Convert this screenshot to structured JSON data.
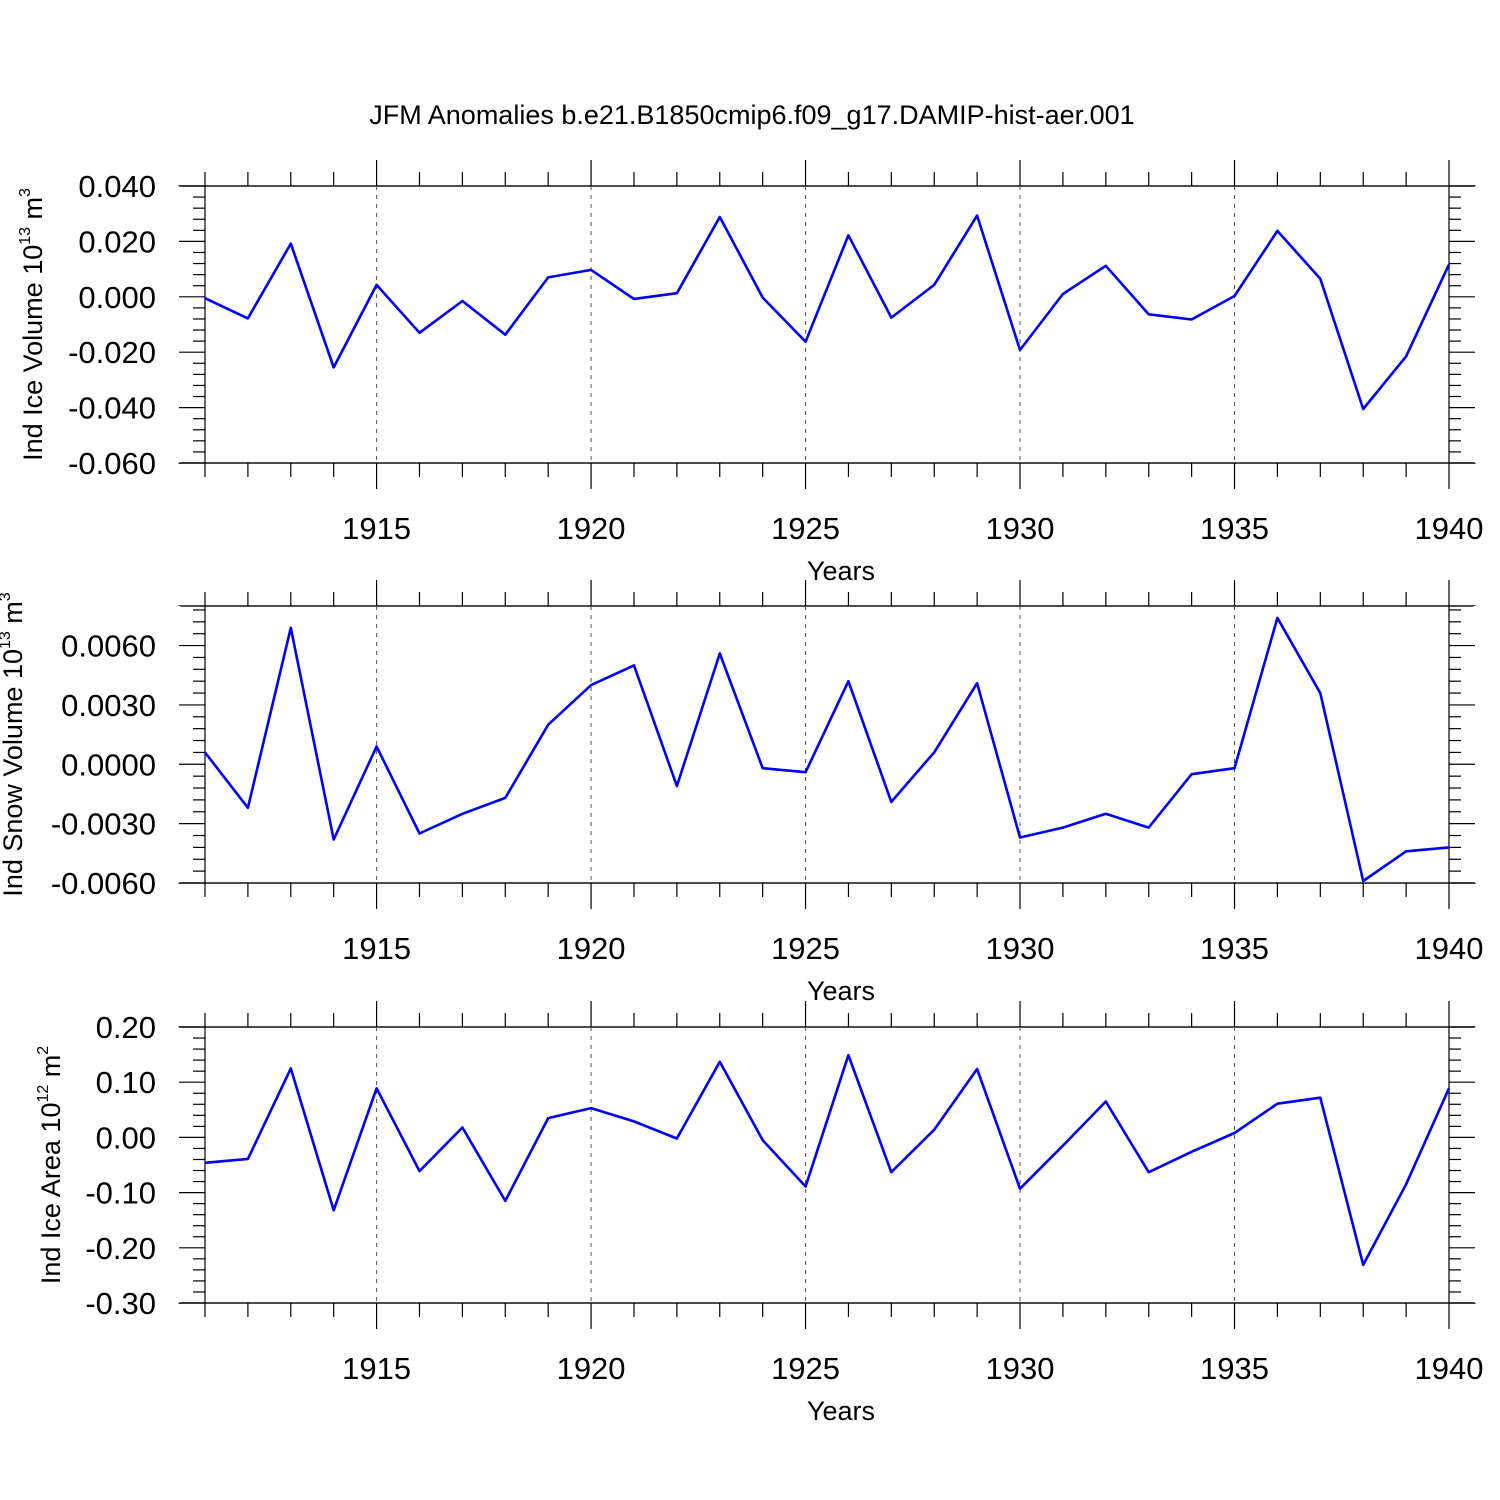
{
  "chart_data": [
    {
      "type": "line",
      "title": "JFM Anomalies b.e21.B1850cmip6.f09_g17.DAMIP-hist-aer.001",
      "ylabel": "Ind Ice Volume 10",
      "ylabel_exp": "13",
      "ylabel_unit": " m",
      "ylabel_unit_exp": "3",
      "xlabel": "Years",
      "xlim": [
        1911,
        1940
      ],
      "ylim": [
        -0.06,
        0.04
      ],
      "xticks": [
        1915,
        1920,
        1925,
        1930,
        1935,
        1940
      ],
      "xtick_labels": [
        "1915",
        "1920",
        "1925",
        "1930",
        "1935",
        "1940"
      ],
      "yticks": [
        0.04,
        0.02,
        0.0,
        -0.02,
        -0.04,
        -0.06
      ],
      "ytick_labels": [
        "0.040",
        "0.020",
        "0.000",
        "-0.020",
        "-0.040",
        "-0.060"
      ],
      "x": [
        1911,
        1912,
        1913,
        1914,
        1915,
        1916,
        1917,
        1918,
        1919,
        1920,
        1921,
        1922,
        1923,
        1924,
        1925,
        1926,
        1927,
        1928,
        1929,
        1930,
        1931,
        1932,
        1933,
        1934,
        1935,
        1936,
        1937,
        1938,
        1939,
        1940
      ],
      "series": [
        {
          "name": "Ind Ice Volume",
          "color": "#0000ff",
          "values": [
            -0.0005,
            -0.0078,
            0.0192,
            -0.0255,
            0.0043,
            -0.013,
            -0.0015,
            -0.0137,
            0.007,
            0.0097,
            -0.0008,
            0.0013,
            0.0288,
            -0.0003,
            -0.0162,
            0.0222,
            -0.0075,
            0.0043,
            0.0293,
            -0.0192,
            0.001,
            0.0112,
            -0.0063,
            -0.0082,
            0.0003,
            0.0238,
            0.0065,
            -0.0405,
            -0.0215,
            0.0117
          ]
        }
      ]
    },
    {
      "type": "line",
      "ylabel": "Ind Snow Volume 10",
      "ylabel_exp": "13",
      "ylabel_unit": " m",
      "ylabel_unit_exp": "3",
      "xlabel": "Years",
      "xlim": [
        1911,
        1940
      ],
      "ylim": [
        -0.006,
        0.008
      ],
      "xticks": [
        1915,
        1920,
        1925,
        1930,
        1935,
        1940
      ],
      "xtick_labels": [
        "1915",
        "1920",
        "1925",
        "1930",
        "1935",
        "1940"
      ],
      "yticks": [
        0.006,
        0.003,
        0.0,
        -0.003,
        -0.006
      ],
      "ytick_labels": [
        "0.0060",
        "0.0030",
        "0.0000",
        "-0.0030",
        "-0.0060"
      ],
      "x": [
        1911,
        1912,
        1913,
        1914,
        1915,
        1916,
        1917,
        1918,
        1919,
        1920,
        1921,
        1922,
        1923,
        1924,
        1925,
        1926,
        1927,
        1928,
        1929,
        1930,
        1931,
        1932,
        1933,
        1934,
        1935,
        1936,
        1937,
        1938,
        1939,
        1940
      ],
      "series": [
        {
          "name": "Ind Snow Volume",
          "color": "#0000ff",
          "values": [
            0.0006,
            -0.0022,
            0.0069,
            -0.0038,
            0.0009,
            -0.0035,
            -0.0025,
            -0.0017,
            0.002,
            0.004,
            0.005,
            -0.0011,
            0.0056,
            -0.0002,
            -0.0004,
            0.0042,
            -0.0019,
            0.0006,
            0.0041,
            -0.0037,
            -0.0032,
            -0.0025,
            -0.0032,
            -0.0005,
            -0.0002,
            0.0074,
            0.0036,
            -0.0059,
            -0.0044,
            -0.0042
          ]
        }
      ]
    },
    {
      "type": "line",
      "ylabel": "Ind Ice Area 10",
      "ylabel_exp": "12",
      "ylabel_unit": " m",
      "ylabel_unit_exp": "2",
      "xlabel": "Years",
      "xlim": [
        1911,
        1940
      ],
      "ylim": [
        -0.3,
        0.2
      ],
      "xticks": [
        1915,
        1920,
        1925,
        1930,
        1935,
        1940
      ],
      "xtick_labels": [
        "1915",
        "1920",
        "1925",
        "1930",
        "1935",
        "1940"
      ],
      "yticks": [
        0.2,
        0.1,
        0.0,
        -0.1,
        -0.2,
        -0.3
      ],
      "ytick_labels": [
        "0.20",
        "0.10",
        "0.00",
        "-0.10",
        "-0.20",
        "-0.30"
      ],
      "x": [
        1911,
        1912,
        1913,
        1914,
        1915,
        1916,
        1917,
        1918,
        1919,
        1920,
        1921,
        1922,
        1923,
        1924,
        1925,
        1926,
        1927,
        1928,
        1929,
        1930,
        1931,
        1932,
        1933,
        1934,
        1935,
        1936,
        1937,
        1938,
        1939,
        1940
      ],
      "series": [
        {
          "name": "Ind Ice Area",
          "color": "#0000ff",
          "values": [
            -0.046,
            -0.039,
            0.125,
            -0.132,
            0.089,
            -0.061,
            0.018,
            -0.115,
            0.035,
            0.053,
            0.029,
            -0.002,
            0.137,
            -0.005,
            -0.089,
            0.149,
            -0.063,
            0.014,
            0.124,
            -0.093,
            -0.015,
            0.065,
            -0.063,
            -0.026,
            0.008,
            0.061,
            0.072,
            -0.231,
            -0.085,
            0.089
          ]
        }
      ]
    }
  ]
}
